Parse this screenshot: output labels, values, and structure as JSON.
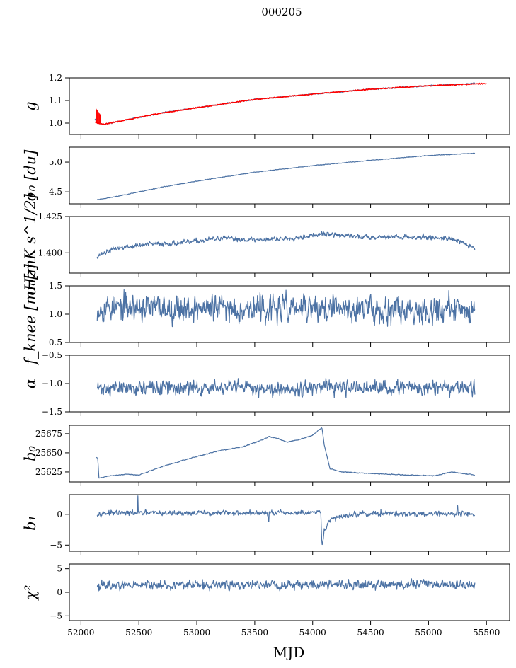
{
  "figure": {
    "title": "000205",
    "xlabel": "MJD"
  },
  "chart_data": {
    "type": "line",
    "title": "000205",
    "xlabel": "MJD",
    "xlim": [
      51900,
      55700
    ],
    "x_ticks": [
      52000,
      52500,
      53000,
      53500,
      54000,
      54500,
      55000,
      55500
    ],
    "x_tick_labels": [
      "52000",
      "52500",
      "53000",
      "53500",
      "54000",
      "54500",
      "55000",
      "55500"
    ],
    "line_color": "#4c72a4",
    "fit_color": "#ff0000",
    "panels": [
      {
        "id": "g",
        "ylabel": "g",
        "ylim": [
          0.95,
          1.2
        ],
        "yticks": [
          1.0,
          1.1,
          1.2
        ],
        "ytick_labels": [
          "1.0",
          "1.1",
          "1.2"
        ],
        "noise": 0.002,
        "seed": 11,
        "points": [
          [
            52120,
            1.02
          ],
          [
            52145,
            1.0
          ],
          [
            52200,
            0.995
          ],
          [
            52400,
            1.015
          ],
          [
            52700,
            1.045
          ],
          [
            53000,
            1.068
          ],
          [
            53500,
            1.105
          ],
          [
            54000,
            1.128
          ],
          [
            54500,
            1.15
          ],
          [
            55000,
            1.165
          ],
          [
            55400,
            1.175
          ]
        ],
        "fit": {
          "points": [
            [
              52120,
              1.005
            ],
            [
              52145,
              1.0
            ],
            [
              52200,
              0.995
            ],
            [
              52400,
              1.015
            ],
            [
              52700,
              1.045
            ],
            [
              53000,
              1.068
            ],
            [
              53500,
              1.105
            ],
            [
              54000,
              1.128
            ],
            [
              54500,
              1.15
            ],
            [
              55000,
              1.165
            ],
            [
              55500,
              1.175
            ]
          ],
          "spike": {
            "x": 52130,
            "y_low": 1.0,
            "y_high": 1.065
          }
        }
      },
      {
        "id": "sigma0_du",
        "ylabel": "σ₀ [du]",
        "ylim": [
          4.3,
          5.25
        ],
        "yticks": [
          4.5,
          5.0
        ],
        "ytick_labels": [
          "4.5",
          "5.0"
        ],
        "noise": 0.004,
        "seed": 23,
        "points": [
          [
            52140,
            4.37
          ],
          [
            52300,
            4.42
          ],
          [
            52700,
            4.58
          ],
          [
            53000,
            4.68
          ],
          [
            53500,
            4.83
          ],
          [
            54000,
            4.94
          ],
          [
            54500,
            5.03
          ],
          [
            55000,
            5.11
          ],
          [
            55400,
            5.15
          ]
        ]
      },
      {
        "id": "sigma0_mk",
        "ylabel": "σ₀[mK s^1/2]",
        "ylim": [
          1.386,
          1.425
        ],
        "yticks": [
          1.4,
          1.425
        ],
        "ytick_labels": [
          "1.400",
          "1.425"
        ],
        "noise": 0.0012,
        "seed": 37,
        "points": [
          [
            52140,
            1.398
          ],
          [
            52300,
            1.403
          ],
          [
            52600,
            1.406
          ],
          [
            52900,
            1.407
          ],
          [
            53200,
            1.41
          ],
          [
            53500,
            1.409
          ],
          [
            53800,
            1.41
          ],
          [
            54100,
            1.413
          ],
          [
            54400,
            1.411
          ],
          [
            54800,
            1.411
          ],
          [
            55200,
            1.41
          ],
          [
            55400,
            1.403
          ]
        ]
      },
      {
        "id": "fknee",
        "ylabel": "f_knee [mHz]",
        "ylim": [
          0.5,
          1.5
        ],
        "yticks": [
          0.5,
          1.0,
          1.5
        ],
        "ytick_labels": [
          "0.5",
          "1.0",
          "1.5"
        ],
        "noise": 0.17,
        "seed": 53,
        "points": [
          [
            52140,
            1.12
          ],
          [
            55400,
            1.08
          ]
        ]
      },
      {
        "id": "alpha",
        "ylabel": "α",
        "ylim": [
          -1.5,
          -0.5
        ],
        "yticks": [
          -1.5,
          -1.0,
          -0.5
        ],
        "ytick_labels": [
          "−1.5",
          "−1.0",
          "−0.5"
        ],
        "noise": 0.09,
        "seed": 71,
        "points": [
          [
            52140,
            -1.08
          ],
          [
            55400,
            -1.08
          ]
        ]
      },
      {
        "id": "b0",
        "ylabel": "b₀",
        "ylim": [
          25612,
          25686
        ],
        "yticks": [
          25625,
          25650,
          25675
        ],
        "ytick_labels": [
          "25625",
          "25650",
          "25675"
        ],
        "noise": 0.4,
        "seed": 89,
        "points": [
          [
            52130,
            25644
          ],
          [
            52145,
            25643
          ],
          [
            52155,
            25617
          ],
          [
            52250,
            25620
          ],
          [
            52400,
            25622
          ],
          [
            52500,
            25621
          ],
          [
            52700,
            25632
          ],
          [
            52900,
            25641
          ],
          [
            53100,
            25649
          ],
          [
            53200,
            25653
          ],
          [
            53400,
            25658
          ],
          [
            53550,
            25666
          ],
          [
            53620,
            25671
          ],
          [
            53700,
            25669
          ],
          [
            53780,
            25664
          ],
          [
            53900,
            25668
          ],
          [
            54000,
            25673
          ],
          [
            54080,
            25683
          ],
          [
            54100,
            25660
          ],
          [
            54150,
            25629
          ],
          [
            54250,
            25625
          ],
          [
            54500,
            25623
          ],
          [
            54800,
            25621
          ],
          [
            55050,
            25620
          ],
          [
            55200,
            25625
          ],
          [
            55300,
            25623
          ],
          [
            55400,
            25621
          ]
        ]
      },
      {
        "id": "b1",
        "ylabel": "b₁",
        "ylim": [
          -6,
          3.2
        ],
        "yticks": [
          -5,
          0
        ],
        "ytick_labels": [
          "−5",
          "0"
        ],
        "noise": 0.3,
        "seed": 97,
        "points": [
          [
            52140,
            0.2
          ],
          [
            54050,
            0.2
          ],
          [
            54070,
            0.3
          ],
          [
            54080,
            -5.4
          ],
          [
            54100,
            -2.5
          ],
          [
            54150,
            -1.0
          ],
          [
            54250,
            -0.3
          ],
          [
            54400,
            0.1
          ],
          [
            55400,
            0.1
          ]
        ],
        "spikes": [
          [
            52490,
            3.0
          ],
          [
            54590,
            0.8
          ],
          [
            55250,
            1.4
          ],
          [
            53620,
            -1.2
          ]
        ]
      },
      {
        "id": "chi2",
        "ylabel": "χ²",
        "ylim": [
          -6,
          6
        ],
        "yticks": [
          -5,
          0,
          5
        ],
        "ytick_labels": [
          "−5",
          "0",
          "5"
        ],
        "noise": 0.7,
        "seed": 113,
        "points": [
          [
            52140,
            1.5
          ],
          [
            55400,
            1.7
          ]
        ]
      }
    ]
  }
}
